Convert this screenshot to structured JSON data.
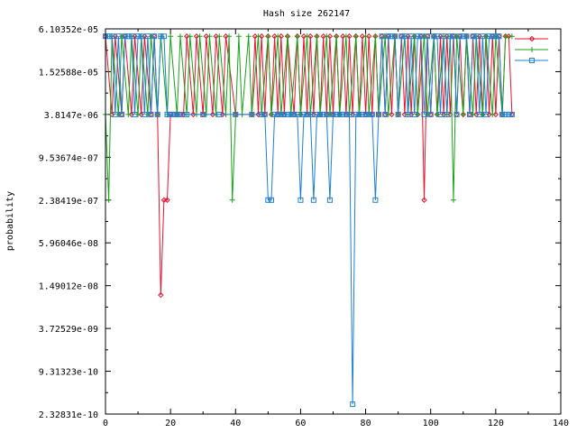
{
  "chart_data": {
    "type": "line",
    "title": "Hash size 262147",
    "xlabel": "",
    "ylabel": "probability",
    "y_scale": "log2",
    "xlim": [
      0,
      140
    ],
    "ylim": [
      2.32831e-10,
      6.10352e-05
    ],
    "x_ticks": [
      0,
      20,
      40,
      60,
      80,
      100,
      120,
      140
    ],
    "x_tick_labels": [
      "0",
      "20",
      "40",
      "60",
      "80",
      "100",
      "120",
      "140"
    ],
    "y_ticks": [
      2.32831e-10,
      9.31323e-10,
      3.72529e-09,
      1.49012e-08,
      5.96046e-08,
      2.38419e-07,
      9.53674e-07,
      3.8147e-06,
      1.52588e-05,
      6.10352e-05
    ],
    "y_tick_labels": [
      "2.32831e-10",
      "9.31323e-10",
      "3.72529e-09",
      "1.49012e-08",
      "5.96046e-08",
      "2.38419e-07",
      "9.53674e-07",
      "3.8147e-06",
      "1.52588e-05",
      "6.10352e-05"
    ],
    "legend_position": "top-right",
    "series": [
      {
        "name": "",
        "color": "#e8122f",
        "marker": "diamond",
        "x": [
          0,
          2,
          3,
          5,
          6,
          8,
          9,
          11,
          12,
          14,
          15,
          16,
          17,
          18,
          19,
          20,
          21,
          22,
          23,
          24,
          25,
          27,
          28,
          30,
          31,
          33,
          34,
          36,
          37,
          40,
          45,
          46,
          47,
          48,
          49,
          50,
          51,
          52,
          53,
          54,
          55,
          56,
          58,
          59,
          60,
          61,
          62,
          63,
          64,
          65,
          66,
          67,
          68,
          69,
          70,
          71,
          72,
          73,
          74,
          75,
          76,
          77,
          78,
          79,
          80,
          81,
          82,
          83,
          84,
          85,
          86,
          87,
          88,
          89,
          90,
          91,
          92,
          93,
          94,
          95,
          96,
          97,
          98,
          99,
          100,
          101,
          102,
          103,
          104,
          105,
          106,
          107,
          108,
          109,
          110,
          111,
          112,
          113,
          114,
          115,
          116,
          117,
          118,
          119,
          120,
          121,
          122,
          123,
          124,
          125
        ],
        "y": [
          4.8e-05,
          3.8147e-06,
          4.8e-05,
          3.8147e-06,
          4.8e-05,
          3.8147e-06,
          4.8e-05,
          3.8147e-06,
          4.8e-05,
          3.8147e-06,
          4.8e-05,
          3.8147e-06,
          1.1e-08,
          2.38419e-07,
          2.38419e-07,
          3.8147e-06,
          3.8147e-06,
          3.8147e-06,
          3.8147e-06,
          3.8147e-06,
          4.8e-05,
          3.8147e-06,
          4.8e-05,
          3.8147e-06,
          4.8e-05,
          3.8147e-06,
          4.8e-05,
          3.8147e-06,
          4.8e-05,
          3.8147e-06,
          3.8147e-06,
          4.8e-05,
          3.8147e-06,
          4.8e-05,
          3.8147e-06,
          4.8e-05,
          3.8147e-06,
          4.8e-05,
          3.8147e-06,
          4.8e-05,
          3.8147e-06,
          4.8e-05,
          3.8147e-06,
          4.8e-05,
          3.8147e-06,
          4.8e-05,
          3.8147e-06,
          4.8e-05,
          3.8147e-06,
          4.8e-05,
          3.8147e-06,
          4.8e-05,
          3.8147e-06,
          4.8e-05,
          3.8147e-06,
          4.8e-05,
          3.8147e-06,
          4.8e-05,
          3.8147e-06,
          4.8e-05,
          3.8147e-06,
          4.8e-05,
          3.8147e-06,
          4.8e-05,
          3.8147e-06,
          4.8e-05,
          3.8147e-06,
          4.8e-05,
          3.8147e-06,
          4.8e-05,
          3.8147e-06,
          4.8e-05,
          3.8147e-06,
          4.8e-05,
          3.8147e-06,
          4.8e-05,
          3.8147e-06,
          4.8e-05,
          3.8147e-06,
          4.8e-05,
          3.8147e-06,
          4.8e-05,
          2.38419e-07,
          4.8e-05,
          3.8147e-06,
          4.8e-05,
          3.8147e-06,
          4.8e-05,
          3.8147e-06,
          4.8e-05,
          3.8147e-06,
          4.8e-05,
          3.8147e-06,
          4.8e-05,
          3.8147e-06,
          4.8e-05,
          3.8147e-06,
          4.8e-05,
          3.8147e-06,
          4.8e-05,
          3.8147e-06,
          4.8e-05,
          3.8147e-06,
          4.8e-05,
          3.8147e-06,
          4.8e-05,
          3.8147e-06,
          4.8e-05,
          4.8e-05,
          3.8147e-06
        ]
      },
      {
        "name": "",
        "color": "#17a317",
        "marker": "plus",
        "x": [
          0,
          1,
          2,
          4,
          5,
          7,
          8,
          10,
          11,
          13,
          14,
          16,
          17,
          19,
          20,
          22,
          23,
          25,
          26,
          28,
          29,
          31,
          32,
          34,
          35,
          37,
          38,
          39,
          41,
          42,
          44,
          45,
          47,
          48,
          50,
          51,
          53,
          54,
          56,
          57,
          59,
          60,
          62,
          63,
          65,
          66,
          68,
          69,
          71,
          72,
          74,
          75,
          77,
          78,
          80,
          81,
          83,
          84,
          86,
          87,
          89,
          90,
          92,
          93,
          95,
          96,
          98,
          99,
          101,
          102,
          104,
          105,
          106,
          107,
          108,
          110,
          111,
          113,
          114,
          116,
          117,
          119,
          120,
          122,
          123,
          125
        ],
        "y": [
          3.8147e-06,
          2.38419e-07,
          4.8e-05,
          3.8147e-06,
          4.8e-05,
          3.8147e-06,
          4.8e-05,
          3.8147e-06,
          4.8e-05,
          3.8147e-06,
          4.8e-05,
          3.8147e-06,
          4.8e-05,
          3.8147e-06,
          4.8e-05,
          3.8147e-06,
          4.8e-05,
          3.8147e-06,
          4.8e-05,
          3.8147e-06,
          4.8e-05,
          3.8147e-06,
          4.8e-05,
          3.8147e-06,
          4.8e-05,
          3.8147e-06,
          4.8e-05,
          2.38419e-07,
          4.8e-05,
          3.8147e-06,
          4.8e-05,
          3.8147e-06,
          4.8e-05,
          3.8147e-06,
          4.8e-05,
          3.8147e-06,
          4.8e-05,
          3.8147e-06,
          4.8e-05,
          3.8147e-06,
          4.8e-05,
          3.8147e-06,
          4.8e-05,
          3.8147e-06,
          4.8e-05,
          3.8147e-06,
          4.8e-05,
          3.8147e-06,
          4.8e-05,
          3.8147e-06,
          4.8e-05,
          3.8147e-06,
          4.8e-05,
          3.8147e-06,
          4.8e-05,
          3.8147e-06,
          4.8e-05,
          3.8147e-06,
          4.8e-05,
          3.8147e-06,
          4.8e-05,
          3.8147e-06,
          4.8e-05,
          3.8147e-06,
          4.8e-05,
          3.8147e-06,
          4.8e-05,
          3.8147e-06,
          4.8e-05,
          3.8147e-06,
          4.8e-05,
          3.8147e-06,
          4.8e-05,
          2.38419e-07,
          4.8e-05,
          3.8147e-06,
          4.8e-05,
          3.8147e-06,
          4.8e-05,
          3.8147e-06,
          4.8e-05,
          3.8147e-06,
          4.8e-05,
          3.8147e-06,
          4.8e-05,
          4.8e-05
        ]
      },
      {
        "name": "",
        "color": "#1f7fd0",
        "marker": "square",
        "x": [
          0,
          1,
          2,
          3,
          4,
          5,
          6,
          7,
          8,
          9,
          10,
          11,
          12,
          13,
          14,
          15,
          16,
          17,
          18,
          19,
          20,
          21,
          22,
          23,
          25,
          30,
          35,
          40,
          45,
          48,
          49,
          50,
          51,
          52,
          53,
          54,
          55,
          56,
          57,
          58,
          59,
          60,
          61,
          62,
          63,
          64,
          65,
          66,
          67,
          68,
          69,
          70,
          71,
          72,
          73,
          74,
          75,
          76,
          77,
          78,
          79,
          80,
          81,
          82,
          83,
          84,
          85,
          86,
          87,
          88,
          89,
          90,
          91,
          92,
          93,
          94,
          95,
          96,
          97,
          98,
          99,
          100,
          101,
          102,
          103,
          104,
          105,
          106,
          107,
          108,
          109,
          110,
          111,
          112,
          113,
          114,
          115,
          116,
          117,
          118,
          119,
          120,
          121,
          122,
          123,
          124,
          125
        ],
        "y": [
          4.8e-05,
          4.8e-05,
          4.8e-05,
          3.8147e-06,
          4.8e-05,
          3.8147e-06,
          4.8e-05,
          4.8e-05,
          4.8e-05,
          3.8147e-06,
          4.8e-05,
          4.8e-05,
          3.8147e-06,
          4.8e-05,
          3.8147e-06,
          4.8e-05,
          3.8147e-06,
          4.8e-05,
          4.8e-05,
          3.8147e-06,
          3.8147e-06,
          3.8147e-06,
          3.8147e-06,
          3.8147e-06,
          3.8147e-06,
          3.8147e-06,
          3.8147e-06,
          3.8147e-06,
          3.8147e-06,
          3.8147e-06,
          3.8147e-06,
          2.38419e-07,
          2.38419e-07,
          3.8147e-06,
          3.8147e-06,
          3.8147e-06,
          3.8147e-06,
          3.8147e-06,
          3.8147e-06,
          3.8147e-06,
          3.8147e-06,
          2.38419e-07,
          3.8147e-06,
          3.8147e-06,
          3.8147e-06,
          2.38419e-07,
          3.8147e-06,
          3.8147e-06,
          3.8147e-06,
          3.8147e-06,
          2.38419e-07,
          3.8147e-06,
          3.8147e-06,
          3.8147e-06,
          3.8147e-06,
          3.8147e-06,
          3.8147e-06,
          3.2e-10,
          3.8147e-06,
          3.8147e-06,
          3.8147e-06,
          3.8147e-06,
          3.8147e-06,
          3.8147e-06,
          2.38419e-07,
          3.8147e-06,
          4.8e-05,
          3.8147e-06,
          4.8e-05,
          4.8e-05,
          4.8e-05,
          3.8147e-06,
          4.8e-05,
          4.8e-05,
          3.8147e-06,
          4.8e-05,
          3.8147e-06,
          4.8e-05,
          4.8e-05,
          3.8147e-06,
          4.8e-05,
          3.8147e-06,
          4.8e-05,
          4.8e-05,
          3.8147e-06,
          4.8e-05,
          3.8147e-06,
          4.8e-05,
          4.8e-05,
          3.8147e-06,
          4.8e-05,
          4.8e-05,
          4.8e-05,
          3.8147e-06,
          4.8e-05,
          4.8e-05,
          3.8147e-06,
          4.8e-05,
          3.8147e-06,
          4.8e-05,
          4.8e-05,
          4.8e-05,
          4.8e-05,
          3.8147e-06,
          3.8147e-06,
          3.8147e-06,
          3.8147e-06
        ]
      }
    ]
  }
}
